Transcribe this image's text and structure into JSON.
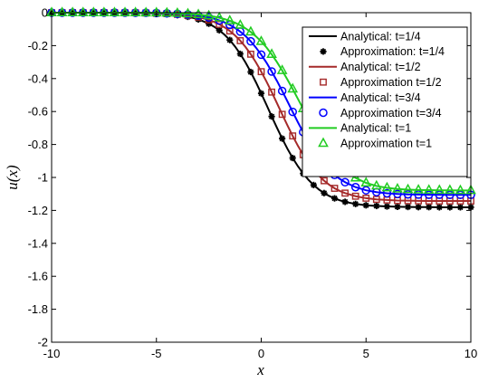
{
  "chart_data": {
    "type": "line",
    "xlabel": "x",
    "ylabel": "u(x)",
    "xlim": [
      -10,
      10
    ],
    "ylim": [
      -2,
      0
    ],
    "xticks": [
      -10,
      -5,
      0,
      5,
      10
    ],
    "yticks": [
      0,
      -0.2,
      -0.4,
      -0.6,
      -0.8,
      -1,
      -1.2,
      -1.4,
      -1.6,
      -1.8,
      -2
    ],
    "grid": false,
    "legend_position": "top-right",
    "marker_x": [
      -10,
      -9.5,
      -9,
      -8.5,
      -8,
      -7.5,
      -7,
      -6.5,
      -6,
      -5.5,
      -5,
      -4.5,
      -4,
      -3.5,
      -3,
      -2.5,
      -2,
      -1.5,
      -1,
      -0.5,
      0,
      0.5,
      1,
      1.5,
      2,
      2.5,
      3,
      3.5,
      4,
      4.5,
      5,
      5.5,
      6,
      6.5,
      7,
      7.5,
      8,
      8.5,
      9,
      9.5,
      10
    ],
    "curve_x": [
      -10,
      -9.5,
      -9,
      -8.5,
      -8,
      -7.5,
      -7,
      -6.5,
      -6,
      -5.5,
      -5,
      -4.5,
      -4,
      -3.75,
      -3.5,
      -3.25,
      -3,
      -2.75,
      -2.5,
      -2.25,
      -2,
      -1.75,
      -1.5,
      -1.25,
      -1,
      -0.75,
      -0.5,
      -0.25,
      0,
      0.25,
      0.5,
      0.75,
      1,
      1.25,
      1.5,
      1.75,
      2,
      2.25,
      2.5,
      2.75,
      3,
      3.25,
      3.5,
      3.75,
      4,
      4.5,
      5,
      5.5,
      6,
      6.5,
      7,
      7.5,
      8,
      8.5,
      9,
      9.5,
      10
    ],
    "series": [
      {
        "name": "Analytical: t=1/4",
        "kind": "line",
        "color": "#000000",
        "values": [
          -0.0,
          -0.0,
          -0.0,
          -0.0,
          -0.0,
          -0.0,
          -0.001,
          -0.001,
          -0.002,
          -0.003,
          -0.005,
          -0.009,
          -0.015,
          -0.02,
          -0.025,
          -0.032,
          -0.041,
          -0.053,
          -0.067,
          -0.085,
          -0.107,
          -0.134,
          -0.166,
          -0.205,
          -0.25,
          -0.302,
          -0.36,
          -0.423,
          -0.49,
          -0.559,
          -0.63,
          -0.698,
          -0.764,
          -0.826,
          -0.882,
          -0.932,
          -0.976,
          -1.014,
          -1.046,
          -1.073,
          -1.095,
          -1.113,
          -1.127,
          -1.139,
          -1.148,
          -1.161,
          -1.169,
          -1.173,
          -1.176,
          -1.178,
          -1.179,
          -1.18,
          -1.18,
          -1.181,
          -1.181,
          -1.181,
          -1.181
        ]
      },
      {
        "name": "Approximation: t=1/4",
        "kind": "marker",
        "marker": "star",
        "color": "#000000",
        "values": [
          -0.0,
          -0.0,
          -0.0,
          -0.0,
          -0.0,
          -0.0,
          -0.001,
          -0.001,
          -0.002,
          -0.003,
          -0.005,
          -0.009,
          -0.015,
          -0.025,
          -0.041,
          -0.067,
          -0.107,
          -0.166,
          -0.25,
          -0.36,
          -0.49,
          -0.63,
          -0.764,
          -0.882,
          -0.976,
          -1.046,
          -1.095,
          -1.127,
          -1.148,
          -1.161,
          -1.169,
          -1.173,
          -1.176,
          -1.178,
          -1.179,
          -1.18,
          -1.18,
          -1.181,
          -1.181,
          -1.181,
          -1.181
        ]
      },
      {
        "name": "Analytical: t=1/2",
        "kind": "line",
        "color": "#a52a2a",
        "values": [
          -0.0,
          -0.0,
          -0.0,
          -0.0,
          -0.0,
          -0.0,
          -0.0,
          -0.001,
          -0.001,
          -0.002,
          -0.004,
          -0.006,
          -0.01,
          -0.013,
          -0.017,
          -0.021,
          -0.027,
          -0.035,
          -0.044,
          -0.056,
          -0.071,
          -0.089,
          -0.111,
          -0.138,
          -0.17,
          -0.208,
          -0.252,
          -0.302,
          -0.358,
          -0.418,
          -0.482,
          -0.549,
          -0.617,
          -0.684,
          -0.748,
          -0.808,
          -0.862,
          -0.911,
          -0.953,
          -0.989,
          -1.02,
          -1.045,
          -1.066,
          -1.082,
          -1.095,
          -1.114,
          -1.126,
          -1.133,
          -1.137,
          -1.14,
          -1.141,
          -1.142,
          -1.143,
          -1.143,
          -1.143,
          -1.143,
          -1.143
        ]
      },
      {
        "name": "Approximation t=1/2",
        "kind": "marker",
        "marker": "square",
        "color": "#a52a2a",
        "values": [
          -0.0,
          -0.0,
          -0.0,
          -0.0,
          -0.0,
          -0.0,
          -0.0,
          -0.001,
          -0.001,
          -0.002,
          -0.004,
          -0.006,
          -0.01,
          -0.017,
          -0.027,
          -0.044,
          -0.071,
          -0.111,
          -0.17,
          -0.252,
          -0.358,
          -0.482,
          -0.617,
          -0.748,
          -0.862,
          -0.953,
          -1.02,
          -1.066,
          -1.095,
          -1.114,
          -1.126,
          -1.133,
          -1.137,
          -1.14,
          -1.141,
          -1.142,
          -1.143,
          -1.143,
          -1.143,
          -1.143,
          -1.143
        ]
      },
      {
        "name": "Analytical: t=3/4",
        "kind": "line",
        "color": "#0000ff",
        "values": [
          -0.0,
          -0.0,
          -0.0,
          -0.0,
          -0.0,
          -0.0,
          -0.0,
          -0.0,
          -0.001,
          -0.001,
          -0.002,
          -0.004,
          -0.007,
          -0.009,
          -0.011,
          -0.014,
          -0.018,
          -0.023,
          -0.029,
          -0.037,
          -0.047,
          -0.059,
          -0.074,
          -0.093,
          -0.115,
          -0.142,
          -0.174,
          -0.212,
          -0.255,
          -0.303,
          -0.357,
          -0.414,
          -0.475,
          -0.538,
          -0.602,
          -0.665,
          -0.725,
          -0.781,
          -0.833,
          -0.879,
          -0.92,
          -0.955,
          -0.985,
          -1.009,
          -1.029,
          -1.059,
          -1.078,
          -1.089,
          -1.096,
          -1.1,
          -1.103,
          -1.104,
          -1.105,
          -1.105,
          -1.106,
          -1.106,
          -1.106
        ]
      },
      {
        "name": "Approximation t=3/4",
        "kind": "marker",
        "marker": "circle",
        "color": "#0000ff",
        "values": [
          -0.0,
          -0.0,
          -0.0,
          -0.0,
          -0.0,
          -0.0,
          -0.0,
          -0.0,
          -0.001,
          -0.001,
          -0.002,
          -0.004,
          -0.007,
          -0.011,
          -0.018,
          -0.029,
          -0.047,
          -0.074,
          -0.115,
          -0.174,
          -0.255,
          -0.357,
          -0.475,
          -0.602,
          -0.725,
          -0.833,
          -0.92,
          -0.985,
          -1.029,
          -1.059,
          -1.078,
          -1.089,
          -1.096,
          -1.1,
          -1.103,
          -1.104,
          -1.105,
          -1.105,
          -1.106,
          -1.106,
          -1.106
        ]
      },
      {
        "name": "Analytical: t=1",
        "kind": "line",
        "color": "#22cc22",
        "values": [
          -0.0,
          -0.0,
          -0.0,
          -0.0,
          -0.0,
          -0.0,
          -0.0,
          -0.0,
          -0.0,
          -0.001,
          -0.001,
          -0.002,
          -0.004,
          -0.006,
          -0.007,
          -0.009,
          -0.012,
          -0.015,
          -0.019,
          -0.024,
          -0.031,
          -0.039,
          -0.049,
          -0.061,
          -0.076,
          -0.095,
          -0.117,
          -0.144,
          -0.175,
          -0.211,
          -0.253,
          -0.3,
          -0.351,
          -0.406,
          -0.463,
          -0.523,
          -0.583,
          -0.643,
          -0.7,
          -0.755,
          -0.805,
          -0.85,
          -0.891,
          -0.926,
          -0.956,
          -1.003,
          -1.033,
          -1.052,
          -1.063,
          -1.07,
          -1.074,
          -1.076,
          -1.077,
          -1.078,
          -1.078,
          -1.079,
          -1.079
        ]
      },
      {
        "name": "Approximation t=1",
        "kind": "marker",
        "marker": "triangle",
        "color": "#22cc22",
        "values": [
          -0.0,
          -0.0,
          -0.0,
          -0.0,
          -0.0,
          -0.0,
          -0.0,
          -0.0,
          -0.0,
          -0.001,
          -0.001,
          -0.002,
          -0.004,
          -0.007,
          -0.012,
          -0.019,
          -0.031,
          -0.049,
          -0.076,
          -0.117,
          -0.175,
          -0.253,
          -0.351,
          -0.463,
          -0.583,
          -0.7,
          -0.805,
          -0.891,
          -0.956,
          -1.003,
          -1.033,
          -1.052,
          -1.063,
          -1.07,
          -1.074,
          -1.076,
          -1.077,
          -1.078,
          -1.078,
          -1.079,
          -1.079
        ]
      }
    ]
  }
}
